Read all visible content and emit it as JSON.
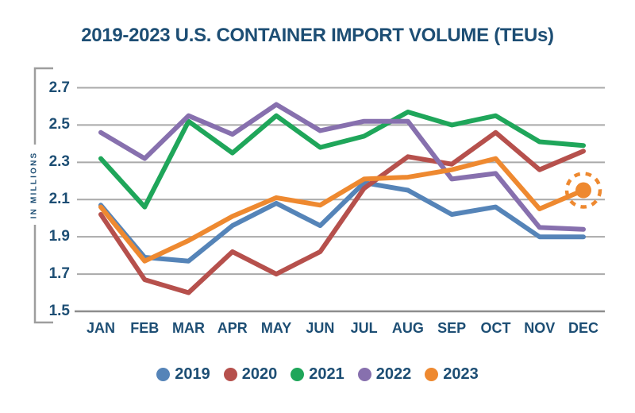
{
  "title": "2019-2023 U.S. CONTAINER IMPORT VOLUME (TEUs)",
  "colors": {
    "text": "#1d4e74",
    "gridline": "#a9a9a9",
    "baseline": "#8d8d8d",
    "axis_bracket": "#9e9e9e",
    "highlight": "#ee8930"
  },
  "chart_data": {
    "type": "line",
    "title": "2019-2023 U.S. CONTAINER IMPORT VOLUME (TEUs)",
    "xlabel": "",
    "ylabel": "IN MILLIONS",
    "categories": [
      "JAN",
      "FEB",
      "MAR",
      "APR",
      "MAY",
      "JUN",
      "JUL",
      "AUG",
      "SEP",
      "OCT",
      "NOV",
      "DEC"
    ],
    "yticks": [
      "2.7",
      "2.5",
      "2.3",
      "2.1",
      "1.9",
      "1.7",
      "1.5"
    ],
    "ylim": [
      1.5,
      2.7
    ],
    "grid": "horizontal",
    "legend_position": "bottom",
    "series": [
      {
        "name": "2019",
        "color": "#5584b8",
        "values": [
          2.07,
          1.79,
          1.77,
          1.96,
          2.08,
          1.96,
          2.19,
          2.15,
          2.02,
          2.06,
          1.9,
          1.9
        ]
      },
      {
        "name": "2020",
        "color": "#b6504c",
        "values": [
          2.02,
          1.67,
          1.6,
          1.82,
          1.7,
          1.82,
          2.16,
          2.33,
          2.29,
          2.46,
          2.26,
          2.36
        ]
      },
      {
        "name": "2021",
        "color": "#1fa65a",
        "values": [
          2.32,
          2.06,
          2.52,
          2.35,
          2.55,
          2.38,
          2.44,
          2.57,
          2.5,
          2.55,
          2.41,
          2.39
        ]
      },
      {
        "name": "2022",
        "color": "#8770ae",
        "values": [
          2.46,
          2.32,
          2.55,
          2.45,
          2.61,
          2.47,
          2.52,
          2.52,
          2.21,
          2.24,
          1.95,
          1.94
        ]
      },
      {
        "name": "2023",
        "color": "#ee8930",
        "values": [
          2.06,
          1.77,
          1.88,
          2.01,
          2.11,
          2.07,
          2.21,
          2.22,
          2.26,
          2.32,
          2.05,
          2.15
        ]
      }
    ],
    "annotation": {
      "series": "2023",
      "category": "DEC",
      "value": 2.15,
      "style": "dashed-circle-highlight"
    }
  }
}
